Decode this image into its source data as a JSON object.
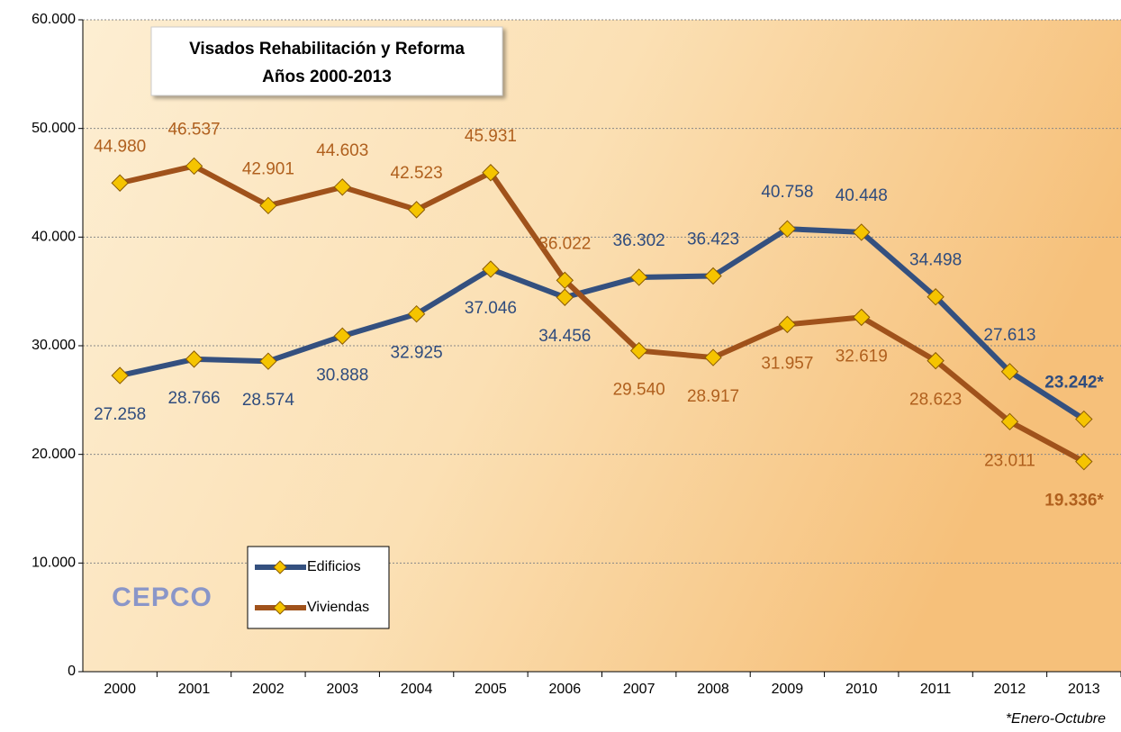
{
  "chart_data": {
    "type": "line",
    "title": "Visados Rehabilitación y Reforma",
    "subtitle": "Años 2000-2013",
    "categories": [
      "2000",
      "2001",
      "2002",
      "2003",
      "2004",
      "2005",
      "2006",
      "2007",
      "2008",
      "2009",
      "2010",
      "2011",
      "2012",
      "2013"
    ],
    "series": [
      {
        "name": "Edificios",
        "color": "#34507f",
        "label_color": "#2f4c7e",
        "marker_color": "#f5c400",
        "values": [
          27258,
          28766,
          28574,
          30888,
          32925,
          37046,
          34456,
          36302,
          36423,
          40758,
          40448,
          34498,
          27613,
          23242
        ],
        "value_labels": [
          "27.258",
          "28.766",
          "28.574",
          "30.888",
          "32.925",
          "37.046",
          "34.456",
          "36.302",
          "36.423",
          "40.758",
          "40.448",
          "34.498",
          "27.613",
          "23.242*"
        ]
      },
      {
        "name": "Viviendas",
        "color": "#a0521b",
        "label_color": "#b0601e",
        "marker_color": "#f5c400",
        "values": [
          44980,
          46537,
          42901,
          44603,
          42523,
          45931,
          36022,
          29540,
          28917,
          31957,
          32619,
          28623,
          23011,
          19336
        ],
        "value_labels": [
          "44.980",
          "46.537",
          "42.901",
          "44.603",
          "42.523",
          "45.931",
          "36.022",
          "29.540",
          "28.917",
          "31.957",
          "32.619",
          "28.623",
          "23.011",
          "19.336*"
        ]
      }
    ],
    "ylim": [
      0,
      60000
    ],
    "yticks": [
      0,
      {
        "value": 10000,
        "label": "10.000"
      },
      {
        "value": 20000,
        "label": "20.000"
      },
      {
        "value": 30000,
        "label": "30.000"
      },
      {
        "value": 40000,
        "label": "40.000"
      },
      {
        "value": 50000,
        "label": "50.000"
      },
      {
        "value": 60000,
        "label": "60.000"
      }
    ],
    "grid": true,
    "legend": "lower-left",
    "logo": "CEPCO",
    "footnote": "*Enero-Octubre"
  }
}
